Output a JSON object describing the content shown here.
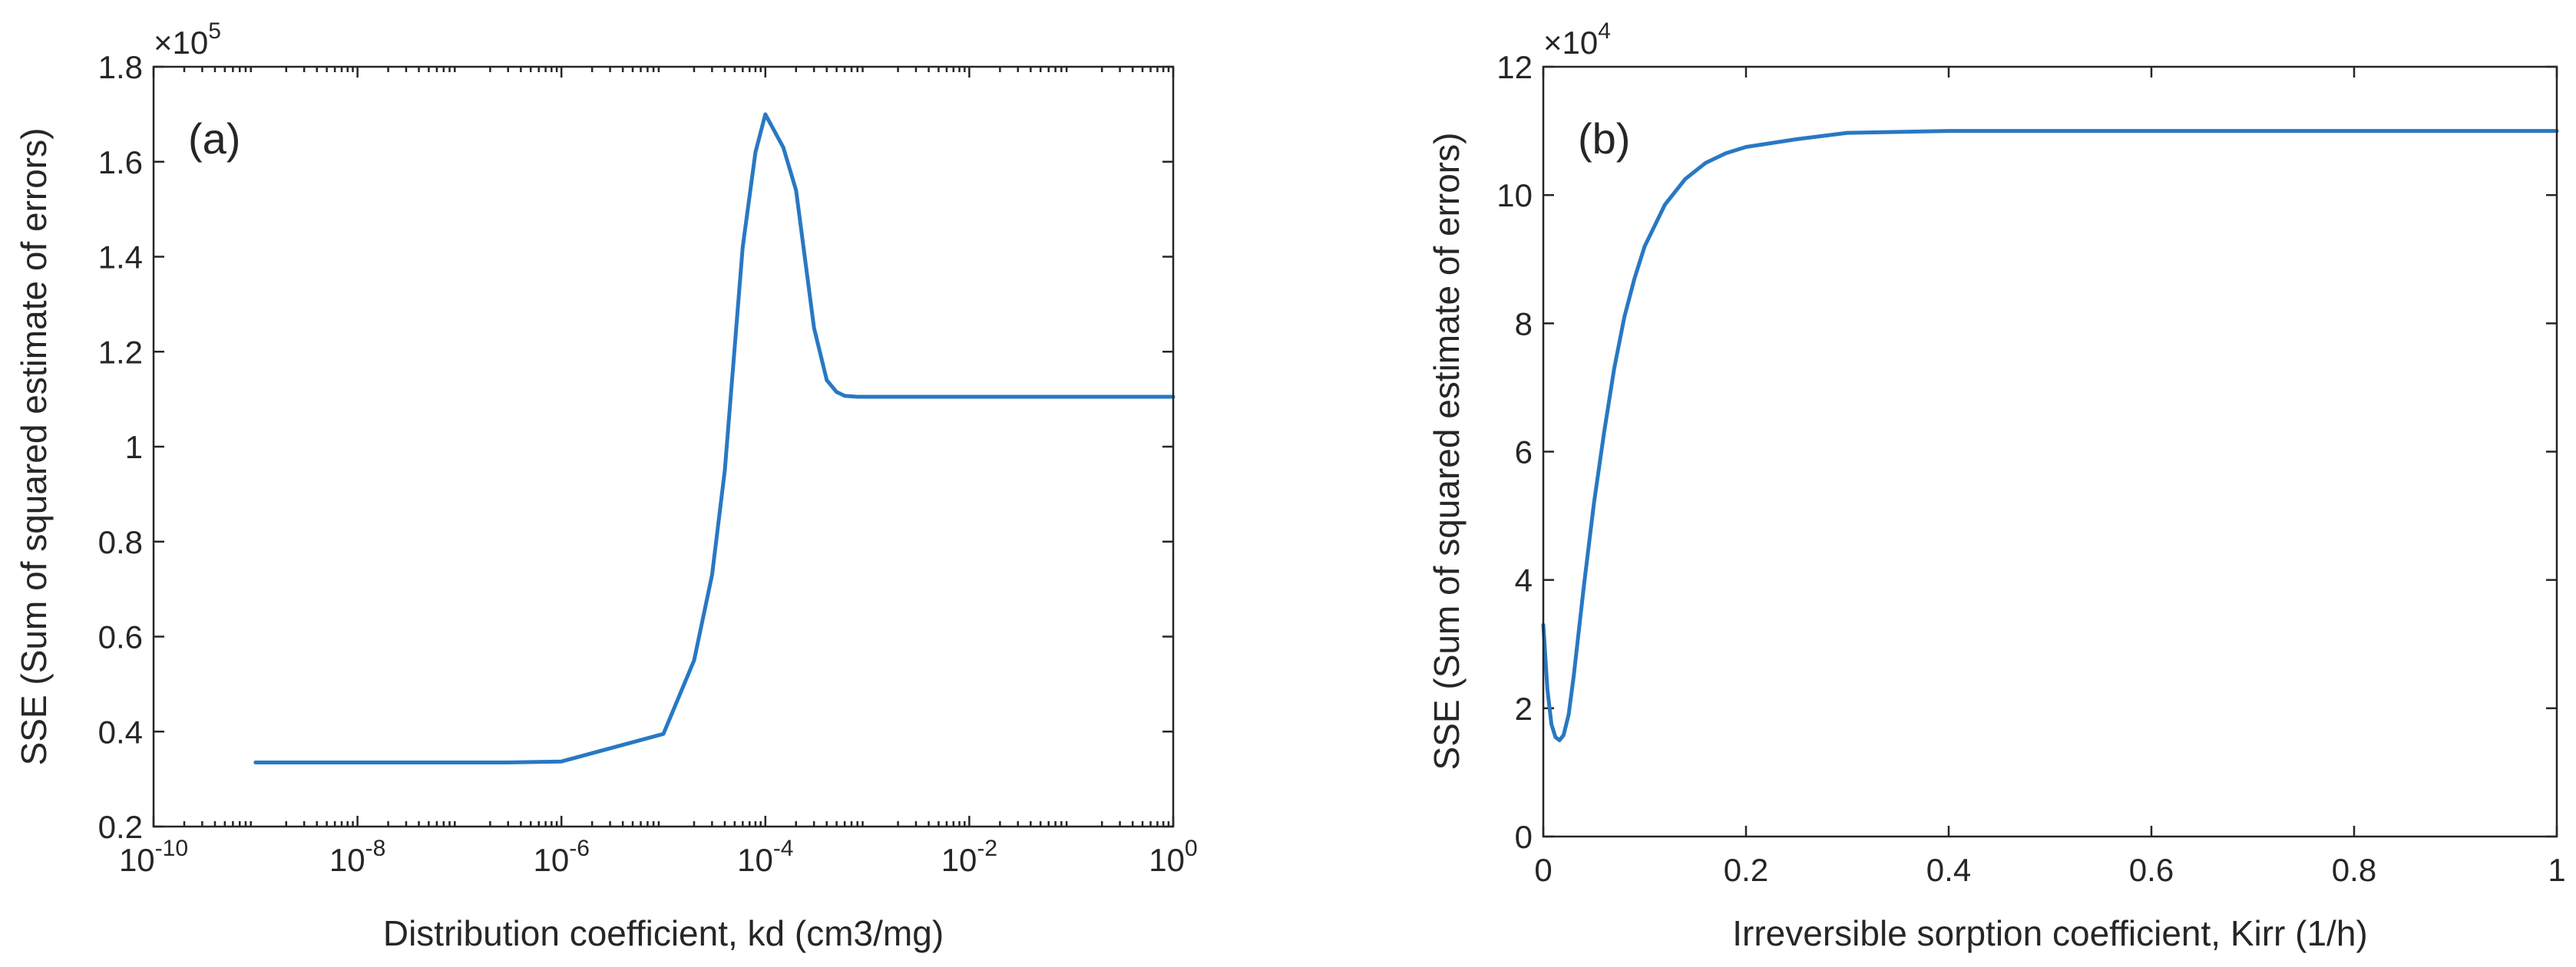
{
  "chart_data": [
    {
      "type": "line",
      "panel_label": "(a)",
      "xlabel": "Distribution coefficient, kd (cm3/mg)",
      "ylabel": "SSE (Sum of squared estimate of errors)",
      "x_scale": "log",
      "xlim": [
        1e-10,
        1
      ],
      "ylim": [
        0.2,
        1.8
      ],
      "y_multiplier": "×10",
      "y_exponent": "5",
      "x_ticks": [
        {
          "value": 1e-10,
          "base": "10",
          "exp": "-10"
        },
        {
          "value": 1e-08,
          "base": "10",
          "exp": "-8"
        },
        {
          "value": 1e-06,
          "base": "10",
          "exp": "-6"
        },
        {
          "value": 0.0001,
          "base": "10",
          "exp": "-4"
        },
        {
          "value": 0.01,
          "base": "10",
          "exp": "-2"
        },
        {
          "value": 1,
          "base": "10",
          "exp": "0"
        }
      ],
      "y_ticks": [
        {
          "value": 0.2,
          "label": "0.2"
        },
        {
          "value": 0.4,
          "label": "0.4"
        },
        {
          "value": 0.6,
          "label": "0.6"
        },
        {
          "value": 0.8,
          "label": "0.8"
        },
        {
          "value": 1.0,
          "label": "1"
        },
        {
          "value": 1.2,
          "label": "1.2"
        },
        {
          "value": 1.4,
          "label": "1.4"
        },
        {
          "value": 1.6,
          "label": "1.6"
        },
        {
          "value": 1.8,
          "label": "1.8"
        }
      ],
      "series": [
        {
          "name": "SSE",
          "color": "#2878c3",
          "x": [
            1e-09,
            3e-07,
            1e-06,
            1e-05,
            2e-05,
            3e-05,
            4e-05,
            6e-05,
            8e-05,
            0.0001,
            0.00015,
            0.0002,
            0.0003,
            0.0004,
            0.0005,
            0.0006,
            0.0008,
            0.001,
            0.01,
            0.1,
            1
          ],
          "y": [
            0.335,
            0.335,
            0.337,
            0.395,
            0.55,
            0.73,
            0.95,
            1.42,
            1.62,
            1.7,
            1.63,
            1.54,
            1.25,
            1.14,
            1.115,
            1.107,
            1.105,
            1.105,
            1.105,
            1.105,
            1.105
          ]
        }
      ]
    },
    {
      "type": "line",
      "panel_label": "(b)",
      "xlabel": "Irreversible sorption coefficient, Kirr  (1/h)",
      "ylabel": "SSE (Sum of squared estimate of errors)",
      "x_scale": "linear",
      "xlim": [
        0,
        1
      ],
      "ylim": [
        0,
        12
      ],
      "y_multiplier": "×10",
      "y_exponent": "4",
      "x_ticks": [
        {
          "value": 0,
          "label": "0"
        },
        {
          "value": 0.2,
          "label": "0.2"
        },
        {
          "value": 0.4,
          "label": "0.4"
        },
        {
          "value": 0.6,
          "label": "0.6"
        },
        {
          "value": 0.8,
          "label": "0.8"
        },
        {
          "value": 1,
          "label": "1"
        }
      ],
      "y_ticks": [
        {
          "value": 0,
          "label": "0"
        },
        {
          "value": 2,
          "label": "2"
        },
        {
          "value": 4,
          "label": "4"
        },
        {
          "value": 6,
          "label": "6"
        },
        {
          "value": 8,
          "label": "8"
        },
        {
          "value": 10,
          "label": "10"
        },
        {
          "value": 12,
          "label": "12"
        }
      ],
      "series": [
        {
          "name": "SSE",
          "color": "#2878c3",
          "x": [
            0,
            0.004,
            0.008,
            0.012,
            0.016,
            0.02,
            0.025,
            0.03,
            0.04,
            0.05,
            0.06,
            0.07,
            0.08,
            0.09,
            0.1,
            0.12,
            0.14,
            0.16,
            0.18,
            0.2,
            0.25,
            0.3,
            0.4,
            0.5,
            0.6,
            0.7,
            0.8,
            0.9,
            1.0
          ],
          "y": [
            3.3,
            2.3,
            1.75,
            1.55,
            1.5,
            1.58,
            1.9,
            2.5,
            3.9,
            5.2,
            6.3,
            7.3,
            8.1,
            8.7,
            9.2,
            9.85,
            10.25,
            10.5,
            10.65,
            10.75,
            10.87,
            10.97,
            11.0,
            11.0,
            11.0,
            11.0,
            11.0,
            11.0,
            11.0
          ]
        }
      ]
    }
  ]
}
